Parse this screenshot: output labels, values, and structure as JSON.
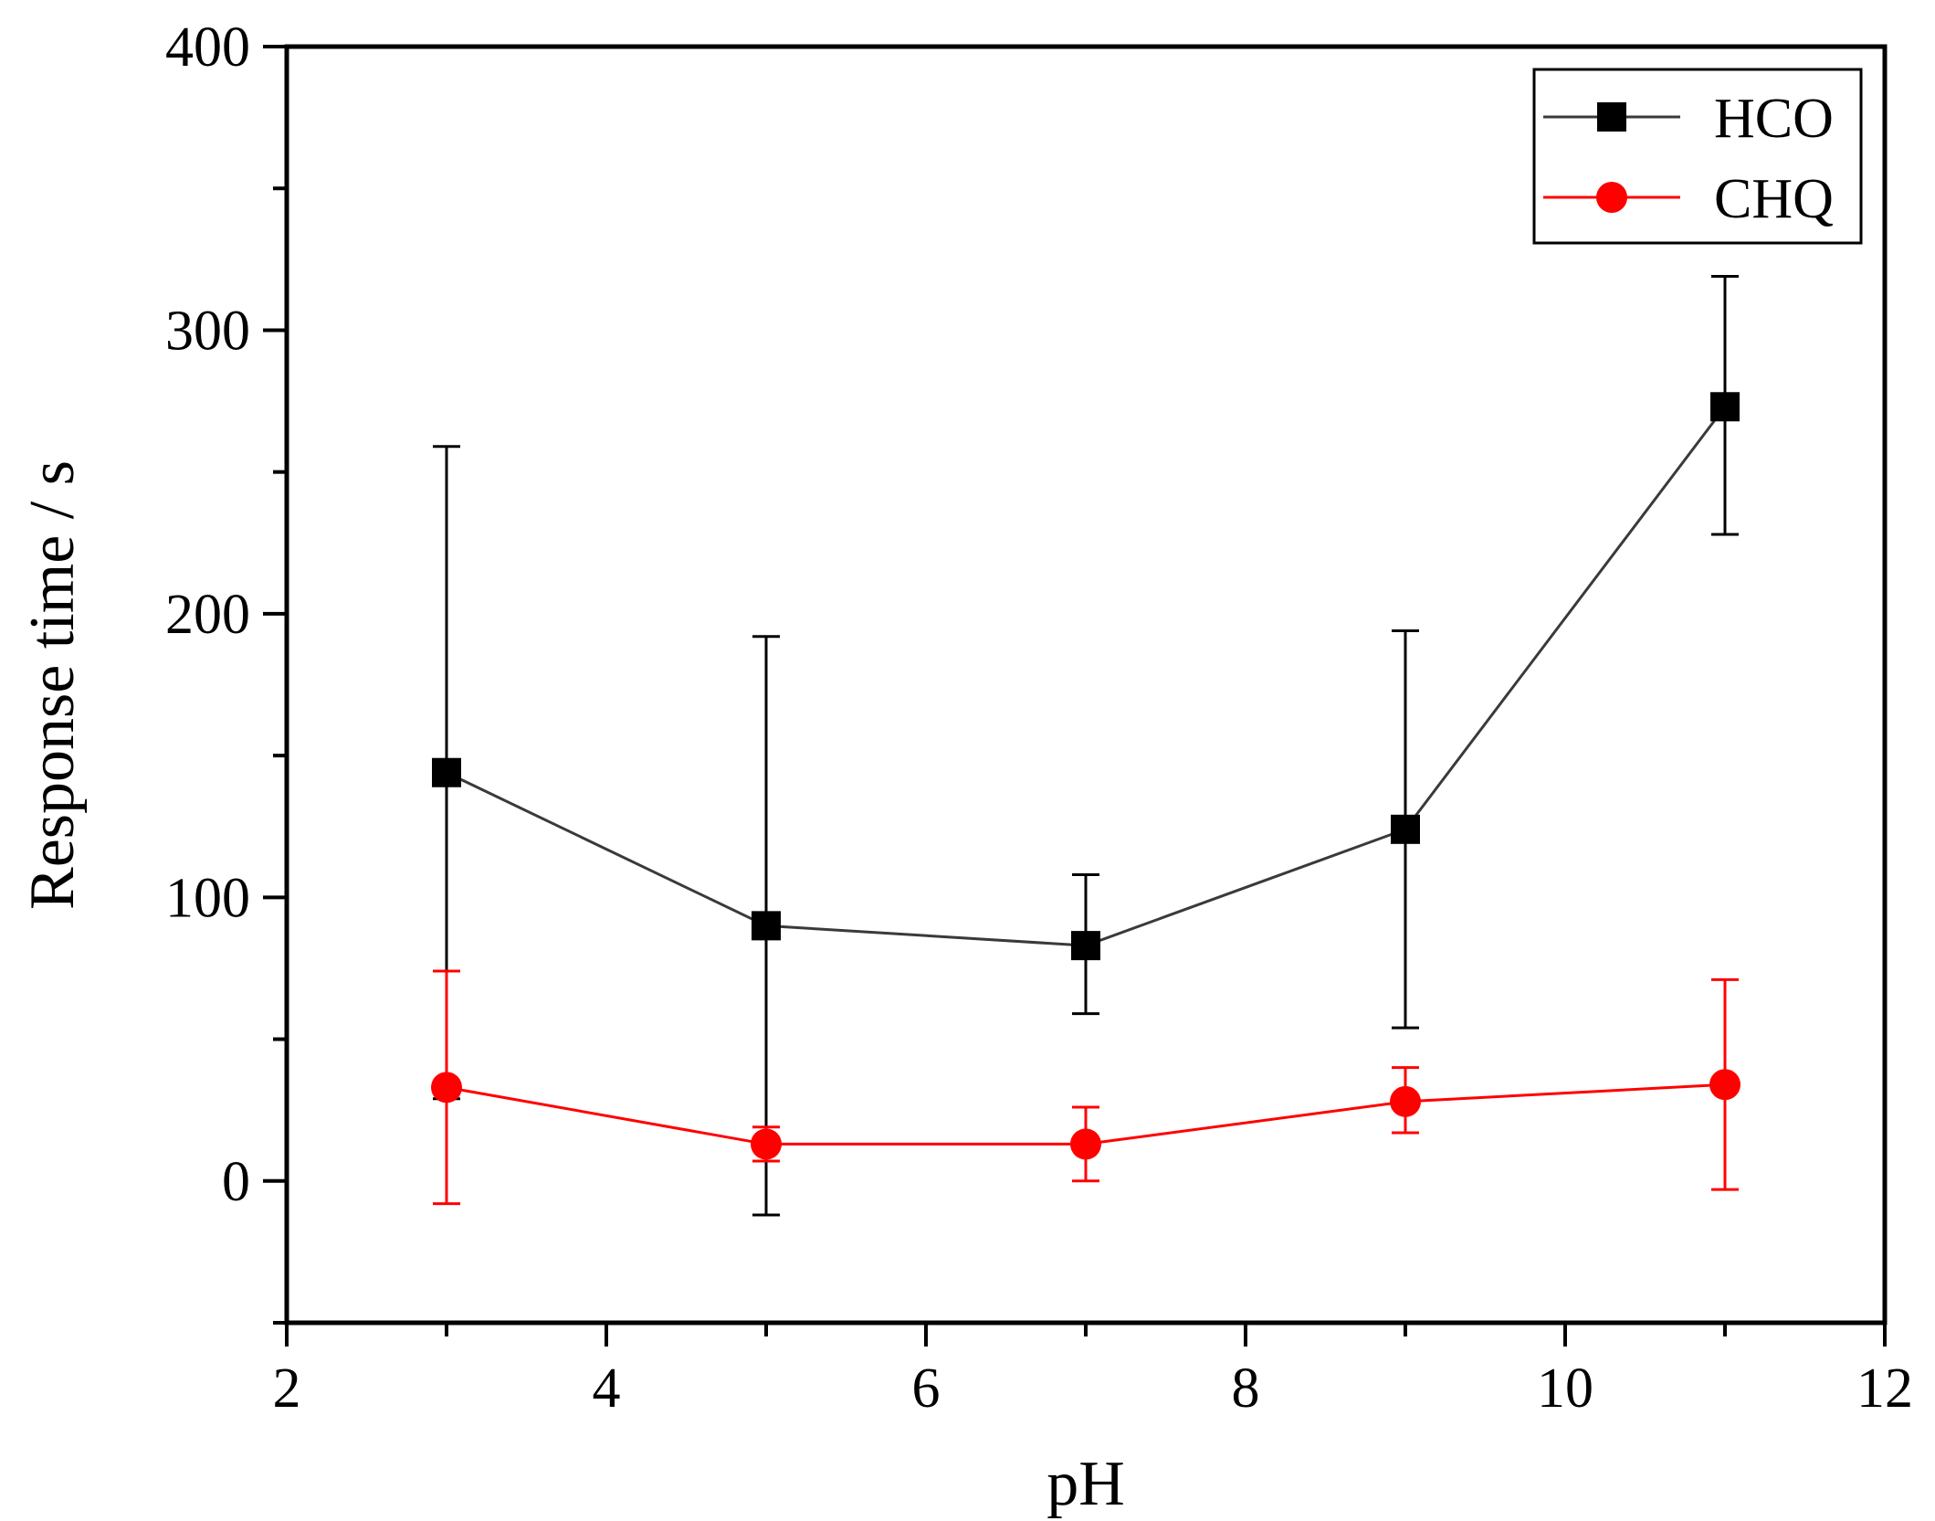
{
  "chart_data": {
    "type": "line",
    "title": "",
    "xlabel": "pH",
    "ylabel": "Response time / s",
    "xlim": [
      2,
      12
    ],
    "ylim": [
      -50,
      400
    ],
    "xticks": [
      2,
      4,
      6,
      8,
      10,
      12
    ],
    "yticks": [
      0,
      100,
      200,
      300,
      400
    ],
    "x_minor_ticks": [
      3,
      5,
      7,
      9,
      11
    ],
    "y_minor_ticks": [
      -50,
      50,
      150,
      250,
      350
    ],
    "grid": false,
    "legend_position": "top-right",
    "x": [
      3,
      5,
      7,
      9,
      11
    ],
    "series": [
      {
        "name": "HCO",
        "marker": "square",
        "color": "#000000",
        "line_color": "#3a3a3a",
        "values": [
          144,
          90,
          83,
          124,
          273
        ],
        "error_upper": [
          259,
          192,
          108,
          194,
          319
        ],
        "error_lower": [
          29,
          -12,
          59,
          54,
          228
        ]
      },
      {
        "name": "CHQ",
        "marker": "circle",
        "color": "#ff0000",
        "line_color": "#ff0000",
        "values": [
          33,
          13,
          13,
          28,
          34
        ],
        "error_upper": [
          74,
          19,
          26,
          40,
          71
        ],
        "error_lower": [
          -8,
          7,
          0,
          17,
          -3
        ]
      }
    ]
  }
}
